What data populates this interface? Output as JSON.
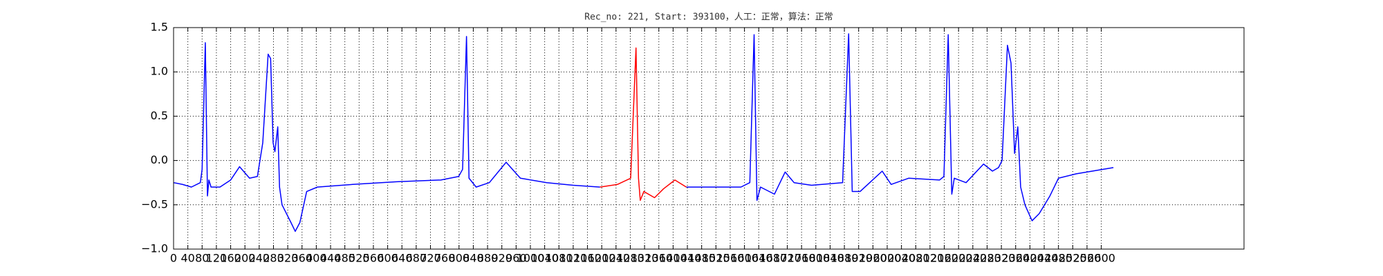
{
  "chart_data": {
    "type": "line",
    "title": "Rec_no: 221, Start: 393100，人工：正常，算法：正常",
    "x": [
      0,
      25,
      50,
      75,
      80,
      89,
      95,
      99,
      105,
      130,
      160,
      185,
      213,
      235,
      250,
      265,
      272,
      279,
      284,
      292,
      297,
      304,
      329,
      341,
      354,
      373,
      403,
      502,
      626,
      749,
      799,
      810,
      821,
      828,
      848,
      885,
      932,
      972,
      1046,
      1120,
      1195,
      1244,
      1281,
      1296,
      1303,
      1308,
      1318,
      1348,
      1373,
      1405,
      1437,
      1491,
      1590,
      1615,
      1627,
      1635,
      1645,
      1684,
      1714,
      1739,
      1788,
      1875,
      1892,
      1902,
      1924,
      1986,
      2011,
      2060,
      2147,
      2159,
      2171,
      2181,
      2188,
      2221,
      2270,
      2295,
      2312,
      2322,
      2337,
      2347,
      2357,
      2366,
      2374,
      2386,
      2406,
      2426,
      2456,
      2480,
      2530,
      2634
    ],
    "series": [
      {
        "color": "#0000ff",
        "values": [
          -0.25,
          -0.27,
          -0.3,
          -0.25,
          -0.1,
          1.33,
          -0.4,
          -0.22,
          -0.3,
          -0.3,
          -0.22,
          -0.07,
          -0.2,
          -0.18,
          0.2,
          1.2,
          1.15,
          0.2,
          0.1,
          0.38,
          -0.3,
          -0.5,
          -0.7,
          -0.8,
          -0.7,
          -0.35,
          -0.3,
          -0.27,
          -0.24,
          -0.22,
          -0.18,
          -0.1,
          1.4,
          -0.2,
          -0.3,
          -0.25,
          -0.02,
          -0.2,
          -0.25,
          -0.28,
          -0.3,
          null,
          null,
          null,
          null,
          null,
          null,
          null,
          null,
          null,
          -0.3,
          -0.3,
          -0.3,
          -0.25,
          1.42,
          -0.45,
          -0.3,
          -0.38,
          -0.13,
          -0.25,
          -0.28,
          -0.25,
          1.43,
          -0.35,
          -0.35,
          -0.12,
          -0.27,
          -0.2,
          -0.22,
          -0.18,
          1.42,
          -0.38,
          -0.2,
          -0.25,
          -0.04,
          -0.12,
          -0.08,
          0.0,
          1.3,
          1.1,
          0.08,
          0.38,
          -0.3,
          -0.5,
          -0.68,
          -0.6,
          -0.4,
          -0.2,
          -0.15,
          -0.08
        ]
      },
      {
        "color": "#ff0000",
        "values": [
          null,
          null,
          null,
          null,
          null,
          null,
          null,
          null,
          null,
          null,
          null,
          null,
          null,
          null,
          null,
          null,
          null,
          null,
          null,
          null,
          null,
          null,
          null,
          null,
          null,
          null,
          null,
          null,
          null,
          null,
          null,
          null,
          null,
          null,
          null,
          null,
          null,
          null,
          null,
          null,
          -0.3,
          -0.27,
          -0.2,
          1.27,
          -0.2,
          -0.45,
          -0.35,
          -0.42,
          -0.32,
          -0.22,
          -0.3,
          null,
          null,
          null,
          null,
          null,
          null,
          null,
          null,
          null,
          null,
          null,
          null,
          null,
          null,
          null,
          null,
          null,
          null,
          null,
          null,
          null,
          null,
          null,
          null,
          null,
          null,
          null,
          null,
          null,
          null,
          null,
          null,
          null,
          null,
          null,
          null,
          null,
          null,
          null
        ]
      }
    ],
    "xlim": [
      0,
      3000
    ],
    "xticks": [
      0,
      40,
      80,
      120,
      160,
      200,
      240,
      280,
      320,
      360,
      400,
      440,
      480,
      520,
      560,
      600,
      640,
      680,
      720,
      760,
      800,
      840,
      880,
      920,
      960,
      1000,
      1040,
      1080,
      1120,
      1160,
      1200,
      1240,
      1280,
      1320,
      1360,
      1400,
      1440,
      1480,
      1520,
      1560,
      1600,
      1640,
      1680,
      1720,
      1760,
      1800,
      1840,
      1880,
      1920,
      1960,
      2000,
      2040,
      2080,
      2120,
      2160,
      2200,
      2240,
      2280,
      2320,
      2360,
      2400,
      2440,
      2480,
      2520,
      2560,
      2600
    ],
    "ylim": [
      -1,
      1.5
    ],
    "yticks": [
      {
        "value": -1,
        "label": "−1.0"
      },
      {
        "value": -0.5,
        "label": "−0.5"
      },
      {
        "value": 0,
        "label": "0.0"
      },
      {
        "value": 0.5,
        "label": "0.5"
      },
      {
        "value": 1,
        "label": "1.0"
      },
      {
        "value": 1.5,
        "label": "1.5"
      }
    ],
    "grid": true
  }
}
